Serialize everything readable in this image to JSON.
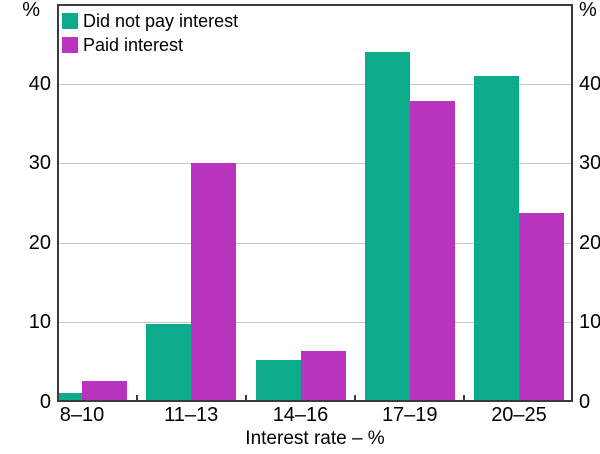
{
  "chart_data": {
    "type": "bar",
    "title": "",
    "categories": [
      "8–10",
      "11–13",
      "14–16",
      "17–19",
      "20–25"
    ],
    "series": [
      {
        "name": "Did not pay interest",
        "color": "#0cab8c",
        "values": [
          1.1,
          9.8,
          5.3,
          44.0,
          40.9
        ]
      },
      {
        "name": "Paid interest",
        "color": "#b834be",
        "values": [
          2.6,
          30.0,
          6.4,
          37.8,
          23.8
        ]
      }
    ],
    "xlabel": "Interest rate – %",
    "ylabel": "",
    "y_unit": "%",
    "ylim": [
      0,
      50
    ],
    "yticks": [
      0,
      10,
      20,
      30,
      40
    ],
    "grid": true,
    "legend_position": "top-left",
    "axis_sides": [
      "left",
      "right"
    ]
  },
  "colors": {
    "gridline": "#c8c8c8",
    "frame": "#3a3a3a",
    "text": "#000000",
    "background": "#ffffff"
  }
}
